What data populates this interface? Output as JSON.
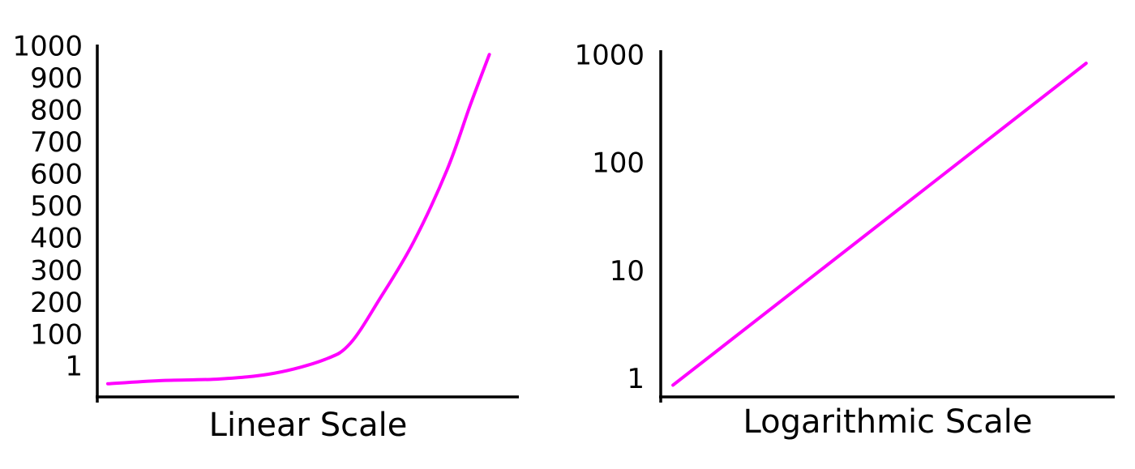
{
  "chart_data": [
    {
      "type": "line",
      "xlabel": "Linear Scale",
      "log_scale": false,
      "grid": false,
      "color": "#ff00ff",
      "xlim": [
        0,
        100
      ],
      "x": [
        2.5,
        15,
        29,
        42,
        54,
        60,
        67,
        75,
        83,
        88.5,
        93
      ],
      "values": [
        -49,
        -39,
        -34,
        -16,
        27,
        77,
        216,
        393,
        620,
        822,
        979
      ],
      "ylim": [
        -90,
        1010
      ],
      "yticks": [
        1,
        100,
        200,
        300,
        400,
        500,
        600,
        700,
        800,
        900,
        1000
      ]
    },
    {
      "type": "line",
      "xlabel": "Logarithmic Scale",
      "log_scale": true,
      "grid": false,
      "color": "#ff00ff",
      "xlim": [
        0,
        100
      ],
      "x": [
        2.7,
        93.7
      ],
      "values": [
        0.9,
        870
      ],
      "ylim": [
        0.7,
        1150
      ],
      "yticks": [
        1,
        10,
        100,
        1000
      ]
    }
  ]
}
